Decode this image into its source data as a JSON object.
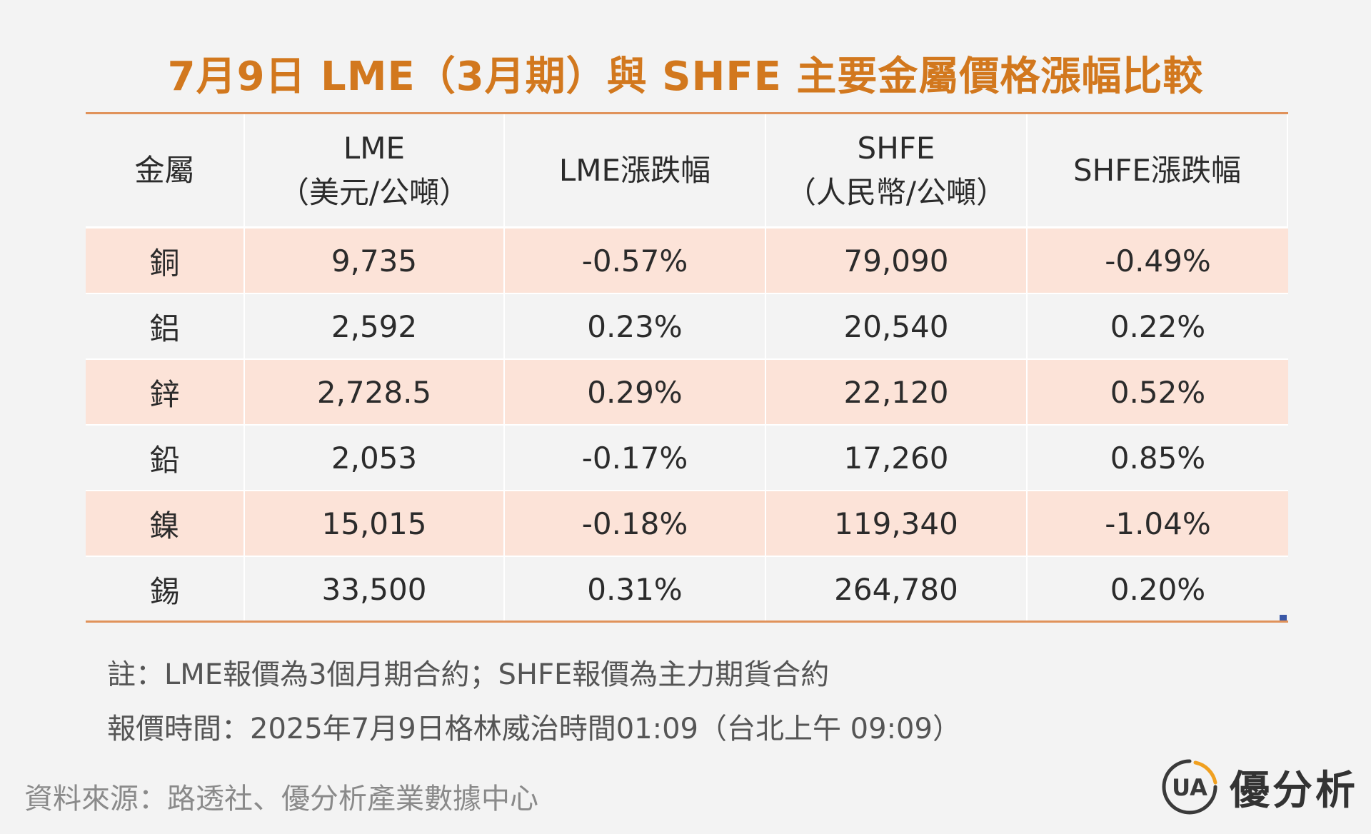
{
  "title": "7月9日 LME（3月期）與 SHFE 主要金屬價格漲幅比較",
  "chart_data": {
    "type": "table",
    "columns": [
      {
        "line1": "金屬",
        "line2": ""
      },
      {
        "line1": "LME",
        "line2": "（美元/公噸）"
      },
      {
        "line1": "LME漲跌幅",
        "line2": ""
      },
      {
        "line1": "SHFE",
        "line2": "（人民幣/公噸）"
      },
      {
        "line1": "SHFE漲跌幅",
        "line2": ""
      }
    ],
    "rows": [
      {
        "metal": "銅",
        "lme": "9,735",
        "lme_change": "-0.57%",
        "shfe": "79,090",
        "shfe_change": "-0.49%"
      },
      {
        "metal": "鋁",
        "lme": "2,592",
        "lme_change": "0.23%",
        "shfe": "20,540",
        "shfe_change": "0.22%"
      },
      {
        "metal": "鋅",
        "lme": "2,728.5",
        "lme_change": "0.29%",
        "shfe": "22,120",
        "shfe_change": "0.52%"
      },
      {
        "metal": "鉛",
        "lme": "2,053",
        "lme_change": "-0.17%",
        "shfe": "17,260",
        "shfe_change": "0.85%"
      },
      {
        "metal": "鎳",
        "lme": "15,015",
        "lme_change": "-0.18%",
        "shfe": "119,340",
        "shfe_change": "-1.04%"
      },
      {
        "metal": "錫",
        "lme": "33,500",
        "lme_change": "0.31%",
        "shfe": "264,780",
        "shfe_change": "0.20%"
      }
    ]
  },
  "notes": {
    "note1": "註：LME報價為3個月期合約；SHFE報價為主力期貨合約",
    "note2": "報價時間：2025年7月9日格林威治時間01:09（台北上午 09:09）"
  },
  "source": "資料來源：路透社、優分析產業數據中心",
  "logo": {
    "text": "優分析",
    "mark_text": "UA"
  },
  "colors": {
    "accent": "#d2781e",
    "row_highlight": "#fce3d8",
    "background": "#f3f3f3"
  }
}
